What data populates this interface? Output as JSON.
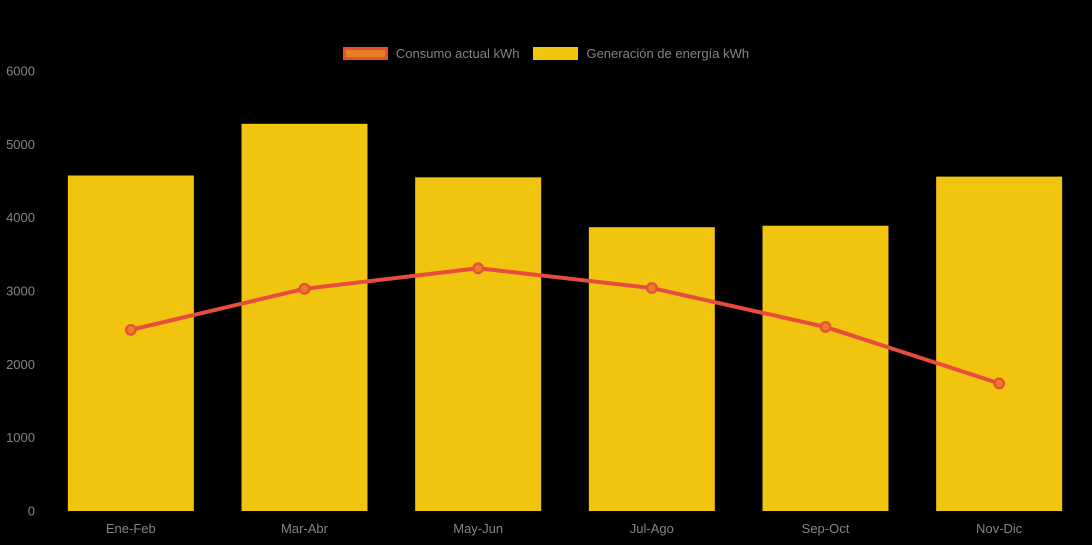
{
  "chart_data": {
    "type": "combo",
    "categories": [
      "Ene-Feb",
      "Mar-Abr",
      "May-Jun",
      "Jul-Ago",
      "Sep-Oct",
      "Nov-Dic"
    ],
    "series": [
      {
        "name": "Consumo actual kWh",
        "type": "line",
        "values": [
          2470,
          3030,
          3310,
          3040,
          2510,
          1740
        ],
        "line_color": "#e74c3c",
        "point_color": "#e67e22"
      },
      {
        "name": "Generación de energía kWh",
        "type": "bar",
        "values": [
          4575,
          5280,
          4550,
          3870,
          3890,
          4560
        ],
        "color": "#f1c40f"
      }
    ],
    "title": "",
    "xlabel": "",
    "ylabel": "",
    "ylim": [
      0,
      6000
    ],
    "yticks": [
      0,
      1000,
      2000,
      3000,
      4000,
      5000,
      6000
    ],
    "grid": false,
    "legend_position": "top-center",
    "background": "#000000",
    "text_color": "#848484"
  }
}
